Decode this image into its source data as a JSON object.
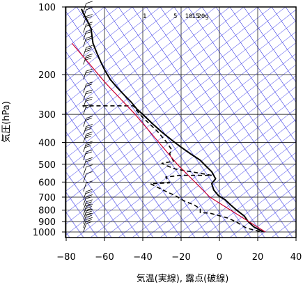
{
  "chart_data": {
    "type": "line",
    "title": "",
    "xlabel": "気温(実線), 露点(破線)",
    "ylabel": "気圧(hPa)",
    "xlim": [
      -80,
      40
    ],
    "ylim": [
      1050,
      100
    ],
    "y_scale": "log",
    "x_ticks": [
      -80,
      -60,
      -40,
      -20,
      0,
      20,
      40
    ],
    "y_ticks": [
      100,
      200,
      300,
      400,
      500,
      600,
      700,
      800,
      900,
      1000
    ],
    "mixing_ratio_labels": [
      "1",
      "5",
      "10",
      "15",
      "20g"
    ],
    "colors": {
      "temperature": "#000000",
      "dewpoint": "#000000",
      "parcel": "#cc0033",
      "isotherm": "#6e6ef0",
      "adiabat": "#3c3ce6",
      "grid": "#000000",
      "wind": "#000000"
    },
    "series": [
      {
        "style": "solid",
        "points": [
          [
            23,
            1000
          ],
          [
            18,
            950
          ],
          [
            15,
            900
          ],
          [
            13,
            850
          ],
          [
            9,
            800
          ],
          [
            6,
            760
          ],
          [
            3,
            720
          ],
          [
            -0.5,
            690
          ],
          [
            -3,
            650
          ],
          [
            -4,
            610
          ],
          [
            -2,
            580
          ],
          [
            -4,
            540
          ],
          [
            -7,
            510
          ],
          [
            -10,
            480
          ],
          [
            -15,
            450
          ],
          [
            -20,
            420
          ],
          [
            -25,
            390
          ],
          [
            -30,
            360
          ],
          [
            -35,
            330
          ],
          [
            -40,
            300
          ],
          [
            -43,
            285
          ],
          [
            -46,
            265
          ],
          [
            -49,
            250
          ],
          [
            -53,
            230
          ],
          [
            -57,
            210
          ],
          [
            -60,
            190
          ],
          [
            -62,
            175
          ],
          [
            -64,
            160
          ],
          [
            -66,
            145
          ],
          [
            -66.5,
            135
          ],
          [
            -67,
            125
          ],
          [
            -69,
            115
          ],
          [
            -71,
            107
          ],
          [
            -72,
            102
          ]
        ]
      },
      {
        "style": "dashed",
        "points": [
          [
            21,
            995
          ],
          [
            14,
            960
          ],
          [
            10,
            915
          ],
          [
            5,
            870
          ],
          [
            -5,
            825
          ],
          [
            -10,
            820
          ],
          [
            -10,
            790
          ],
          [
            -13,
            760
          ],
          [
            -18,
            730
          ],
          [
            -20,
            715
          ],
          [
            -23,
            690
          ],
          [
            -28,
            660
          ],
          [
            -32,
            635
          ],
          [
            -36,
            610
          ],
          [
            -26,
            605
          ],
          [
            -28,
            570
          ],
          [
            -20,
            560
          ],
          [
            -4,
            560
          ],
          [
            -23,
            525
          ],
          [
            -27,
            510
          ],
          [
            -30,
            495
          ],
          [
            -24,
            485
          ],
          [
            -25,
            465
          ],
          [
            -26,
            450
          ],
          [
            -25,
            430
          ],
          [
            -28,
            395
          ],
          [
            -32,
            360
          ],
          [
            -35,
            340
          ],
          [
            -40,
            310
          ],
          [
            -43,
            290
          ],
          [
            -45,
            275
          ],
          [
            -73,
            275
          ]
        ]
      },
      {
        "style": "solid",
        "points": [
          [
            24,
            1000
          ],
          [
            -5,
            700
          ],
          [
            -22,
            500
          ],
          [
            -44,
            300
          ],
          [
            -59,
            220
          ],
          [
            -77,
            145
          ]
        ]
      }
    ],
    "wind_barbs": [
      {
        "p": 1000,
        "speed": 10
      },
      {
        "p": 960,
        "speed": 15
      },
      {
        "p": 920,
        "speed": 20
      },
      {
        "p": 880,
        "speed": 25
      },
      {
        "p": 840,
        "speed": 25
      },
      {
        "p": 800,
        "speed": 25
      },
      {
        "p": 760,
        "speed": 20
      },
      {
        "p": 720,
        "speed": 15
      },
      {
        "p": 660,
        "speed": 10
      },
      {
        "p": 600,
        "speed": 10
      },
      {
        "p": 560,
        "speed": 10
      },
      {
        "p": 520,
        "speed": 15
      },
      {
        "p": 480,
        "speed": 20
      },
      {
        "p": 440,
        "speed": 25
      },
      {
        "p": 400,
        "speed": 30
      },
      {
        "p": 370,
        "speed": 25
      },
      {
        "p": 340,
        "speed": 20
      },
      {
        "p": 300,
        "speed": 20
      },
      {
        "p": 280,
        "speed": 15
      },
      {
        "p": 260,
        "speed": 15
      },
      {
        "p": 240,
        "speed": 20
      },
      {
        "p": 210,
        "speed": 20
      },
      {
        "p": 180,
        "speed": 25
      },
      {
        "p": 165,
        "speed": 25
      },
      {
        "p": 150,
        "speed": 20
      },
      {
        "p": 140,
        "speed": 20
      },
      {
        "p": 130,
        "speed": 15
      },
      {
        "p": 120,
        "speed": 15
      },
      {
        "p": 112,
        "speed": 10
      },
      {
        "p": 105,
        "speed": 10
      }
    ]
  }
}
